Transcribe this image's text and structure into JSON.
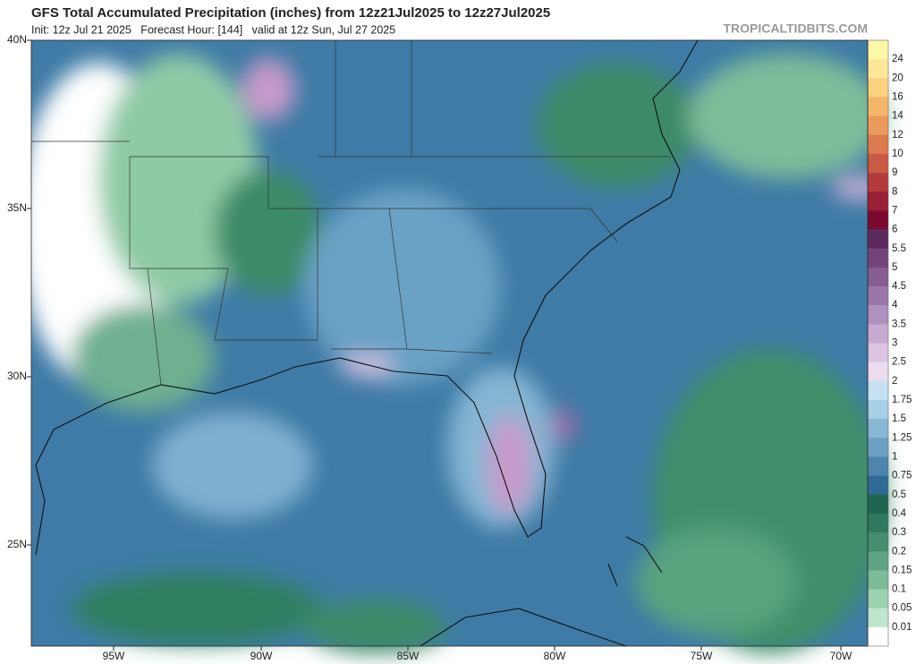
{
  "header": {
    "title": "GFS Total Accumulated Precipitation (inches) from 12z21Jul2025 to 12z27Jul2025",
    "subtitle": "Init: 12z Jul 21 2025   Forecast Hour: [144]   valid at 12z Sun, Jul 27 2025",
    "brand": "TROPICALTIDBITS.COM"
  },
  "map": {
    "lat_labels": [
      "40N",
      "35N",
      "30N",
      "25N"
    ],
    "lon_labels": [
      "95W",
      "90W",
      "85W",
      "80W",
      "75W",
      "70W"
    ]
  },
  "colorbar": {
    "labels": [
      "24",
      "20",
      "16",
      "14",
      "12",
      "10",
      "9",
      "8",
      "7",
      "6",
      "5.5",
      "5",
      "4.5",
      "4",
      "3.5",
      "3",
      "2.5",
      "2",
      "1.75",
      "1.5",
      "1.25",
      "1",
      "0.75",
      "0.5",
      "0.4",
      "0.3",
      "0.2",
      "0.15",
      "0.1",
      "0.05",
      "0.01"
    ]
  }
}
